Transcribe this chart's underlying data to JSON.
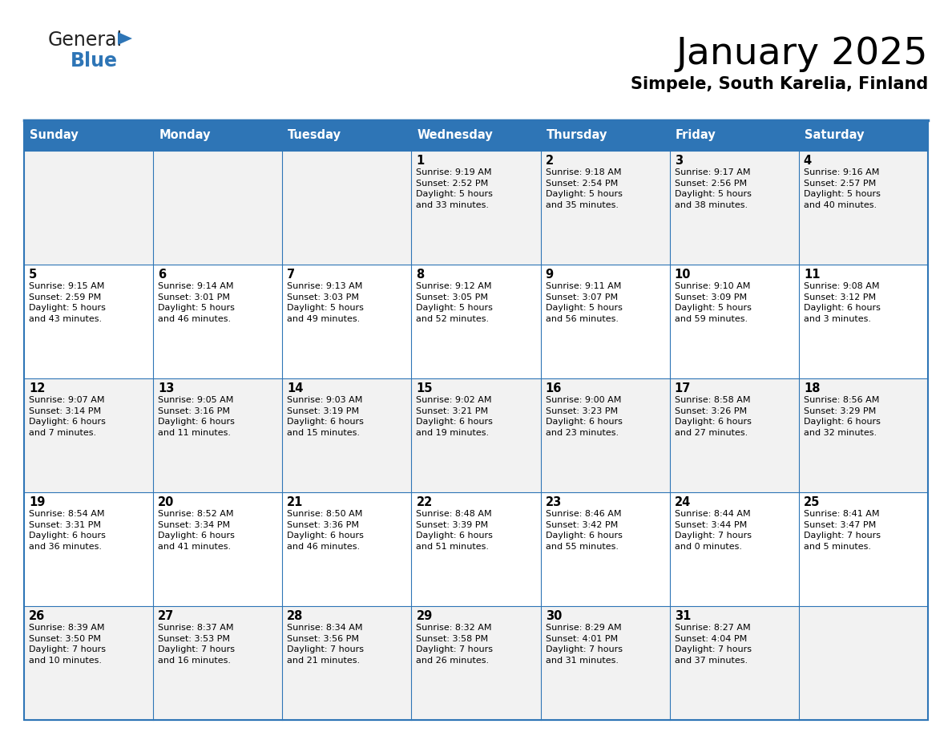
{
  "title": "January 2025",
  "subtitle": "Simpele, South Karelia, Finland",
  "header_bg": "#2E75B6",
  "header_text_color": "#FFFFFF",
  "day_names": [
    "Sunday",
    "Monday",
    "Tuesday",
    "Wednesday",
    "Thursday",
    "Friday",
    "Saturday"
  ],
  "row0_bg": "#F2F2F2",
  "row1_bg": "#FFFFFF",
  "border_color": "#2E75B6",
  "cell_text_color": "#000000",
  "day_num_color": "#000000",
  "title_color": "#000000",
  "subtitle_color": "#000000",
  "logo_general_color": "#222222",
  "logo_blue_color": "#2E75B6",
  "fig_width": 11.88,
  "fig_height": 9.18,
  "calendar": [
    [
      {
        "day": "",
        "info": ""
      },
      {
        "day": "",
        "info": ""
      },
      {
        "day": "",
        "info": ""
      },
      {
        "day": "1",
        "info": "Sunrise: 9:19 AM\nSunset: 2:52 PM\nDaylight: 5 hours\nand 33 minutes."
      },
      {
        "day": "2",
        "info": "Sunrise: 9:18 AM\nSunset: 2:54 PM\nDaylight: 5 hours\nand 35 minutes."
      },
      {
        "day": "3",
        "info": "Sunrise: 9:17 AM\nSunset: 2:56 PM\nDaylight: 5 hours\nand 38 minutes."
      },
      {
        "day": "4",
        "info": "Sunrise: 9:16 AM\nSunset: 2:57 PM\nDaylight: 5 hours\nand 40 minutes."
      }
    ],
    [
      {
        "day": "5",
        "info": "Sunrise: 9:15 AM\nSunset: 2:59 PM\nDaylight: 5 hours\nand 43 minutes."
      },
      {
        "day": "6",
        "info": "Sunrise: 9:14 AM\nSunset: 3:01 PM\nDaylight: 5 hours\nand 46 minutes."
      },
      {
        "day": "7",
        "info": "Sunrise: 9:13 AM\nSunset: 3:03 PM\nDaylight: 5 hours\nand 49 minutes."
      },
      {
        "day": "8",
        "info": "Sunrise: 9:12 AM\nSunset: 3:05 PM\nDaylight: 5 hours\nand 52 minutes."
      },
      {
        "day": "9",
        "info": "Sunrise: 9:11 AM\nSunset: 3:07 PM\nDaylight: 5 hours\nand 56 minutes."
      },
      {
        "day": "10",
        "info": "Sunrise: 9:10 AM\nSunset: 3:09 PM\nDaylight: 5 hours\nand 59 minutes."
      },
      {
        "day": "11",
        "info": "Sunrise: 9:08 AM\nSunset: 3:12 PM\nDaylight: 6 hours\nand 3 minutes."
      }
    ],
    [
      {
        "day": "12",
        "info": "Sunrise: 9:07 AM\nSunset: 3:14 PM\nDaylight: 6 hours\nand 7 minutes."
      },
      {
        "day": "13",
        "info": "Sunrise: 9:05 AM\nSunset: 3:16 PM\nDaylight: 6 hours\nand 11 minutes."
      },
      {
        "day": "14",
        "info": "Sunrise: 9:03 AM\nSunset: 3:19 PM\nDaylight: 6 hours\nand 15 minutes."
      },
      {
        "day": "15",
        "info": "Sunrise: 9:02 AM\nSunset: 3:21 PM\nDaylight: 6 hours\nand 19 minutes."
      },
      {
        "day": "16",
        "info": "Sunrise: 9:00 AM\nSunset: 3:23 PM\nDaylight: 6 hours\nand 23 minutes."
      },
      {
        "day": "17",
        "info": "Sunrise: 8:58 AM\nSunset: 3:26 PM\nDaylight: 6 hours\nand 27 minutes."
      },
      {
        "day": "18",
        "info": "Sunrise: 8:56 AM\nSunset: 3:29 PM\nDaylight: 6 hours\nand 32 minutes."
      }
    ],
    [
      {
        "day": "19",
        "info": "Sunrise: 8:54 AM\nSunset: 3:31 PM\nDaylight: 6 hours\nand 36 minutes."
      },
      {
        "day": "20",
        "info": "Sunrise: 8:52 AM\nSunset: 3:34 PM\nDaylight: 6 hours\nand 41 minutes."
      },
      {
        "day": "21",
        "info": "Sunrise: 8:50 AM\nSunset: 3:36 PM\nDaylight: 6 hours\nand 46 minutes."
      },
      {
        "day": "22",
        "info": "Sunrise: 8:48 AM\nSunset: 3:39 PM\nDaylight: 6 hours\nand 51 minutes."
      },
      {
        "day": "23",
        "info": "Sunrise: 8:46 AM\nSunset: 3:42 PM\nDaylight: 6 hours\nand 55 minutes."
      },
      {
        "day": "24",
        "info": "Sunrise: 8:44 AM\nSunset: 3:44 PM\nDaylight: 7 hours\nand 0 minutes."
      },
      {
        "day": "25",
        "info": "Sunrise: 8:41 AM\nSunset: 3:47 PM\nDaylight: 7 hours\nand 5 minutes."
      }
    ],
    [
      {
        "day": "26",
        "info": "Sunrise: 8:39 AM\nSunset: 3:50 PM\nDaylight: 7 hours\nand 10 minutes."
      },
      {
        "day": "27",
        "info": "Sunrise: 8:37 AM\nSunset: 3:53 PM\nDaylight: 7 hours\nand 16 minutes."
      },
      {
        "day": "28",
        "info": "Sunrise: 8:34 AM\nSunset: 3:56 PM\nDaylight: 7 hours\nand 21 minutes."
      },
      {
        "day": "29",
        "info": "Sunrise: 8:32 AM\nSunset: 3:58 PM\nDaylight: 7 hours\nand 26 minutes."
      },
      {
        "day": "30",
        "info": "Sunrise: 8:29 AM\nSunset: 4:01 PM\nDaylight: 7 hours\nand 31 minutes."
      },
      {
        "day": "31",
        "info": "Sunrise: 8:27 AM\nSunset: 4:04 PM\nDaylight: 7 hours\nand 37 minutes."
      },
      {
        "day": "",
        "info": ""
      }
    ]
  ]
}
